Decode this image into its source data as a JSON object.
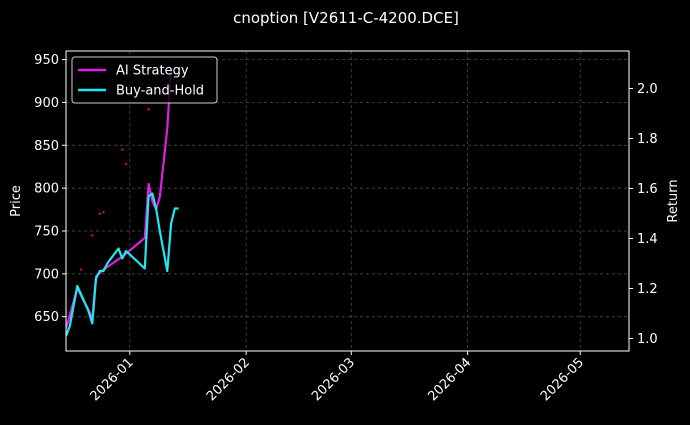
{
  "chart_data": {
    "type": "line",
    "title": "cnoption [V2611-C-4200.DCE]",
    "xlabel": "",
    "ylabel": "Price",
    "ylabel_right": "Return",
    "x_axis": {
      "type": "date",
      "range": [
        "2025-12-15",
        "2026-05-14"
      ],
      "ticks": [
        "2026-01",
        "2026-02",
        "2026-03",
        "2026-04",
        "2026-05"
      ]
    },
    "y_left": {
      "range": [
        610,
        960
      ],
      "ticks": [
        650,
        700,
        750,
        800,
        850,
        900,
        950
      ]
    },
    "y_right": {
      "range": [
        0.95,
        2.15
      ],
      "ticks": [
        "1.0",
        "1.2",
        "1.4",
        "1.6",
        "1.8",
        "2.0"
      ]
    },
    "grid": true,
    "legend_position": "top-left",
    "colors": {
      "background": "#000000",
      "ai_strategy": "#e020e0",
      "buy_and_hold": "#20e8f0",
      "grid": "#555555",
      "scatter_marks": "#d01040"
    },
    "series": [
      {
        "name": "AI Strategy",
        "axis": "left",
        "color": "#e020e0",
        "x": [
          "2025-12-15",
          "2025-12-18",
          "2025-12-21",
          "2025-12-22",
          "2025-12-23",
          "2025-12-25",
          "2025-12-30",
          "2026-01-05",
          "2026-01-06",
          "2026-01-07",
          "2026-01-08",
          "2026-01-09",
          "2026-01-10",
          "2026-01-11",
          "2026-01-12"
        ],
        "y": [
          636,
          683,
          658,
          648,
          697,
          705,
          720,
          742,
          805,
          785,
          775,
          790,
          830,
          870,
          940
        ]
      },
      {
        "name": "Buy-and-Hold",
        "axis": "right",
        "color": "#20e8f0",
        "x": [
          "2025-12-15",
          "2025-12-16",
          "2025-12-18",
          "2025-12-21",
          "2025-12-22",
          "2025-12-23",
          "2025-12-24",
          "2025-12-25",
          "2025-12-26",
          "2025-12-27",
          "2025-12-29",
          "2025-12-30",
          "2025-12-31",
          "2026-01-05",
          "2026-01-06",
          "2026-01-07",
          "2026-01-08",
          "2026-01-09",
          "2026-01-11",
          "2026-01-12",
          "2026-01-13",
          "2026-01-14"
        ],
        "y": [
          1.01,
          1.05,
          1.21,
          1.11,
          1.06,
          1.24,
          1.27,
          1.27,
          1.3,
          1.32,
          1.36,
          1.32,
          1.35,
          1.28,
          1.57,
          1.58,
          1.52,
          1.43,
          1.27,
          1.46,
          1.52,
          1.52
        ]
      }
    ],
    "scatter_points": [
      {
        "x": "2025-12-19",
        "y": 705
      },
      {
        "x": "2025-12-22",
        "y": 745
      },
      {
        "x": "2025-12-24",
        "y": 770
      },
      {
        "x": "2025-12-25",
        "y": 772
      },
      {
        "x": "2025-12-30",
        "y": 845
      },
      {
        "x": "2025-12-31",
        "y": 828
      },
      {
        "x": "2026-01-06",
        "y": 892
      }
    ]
  }
}
